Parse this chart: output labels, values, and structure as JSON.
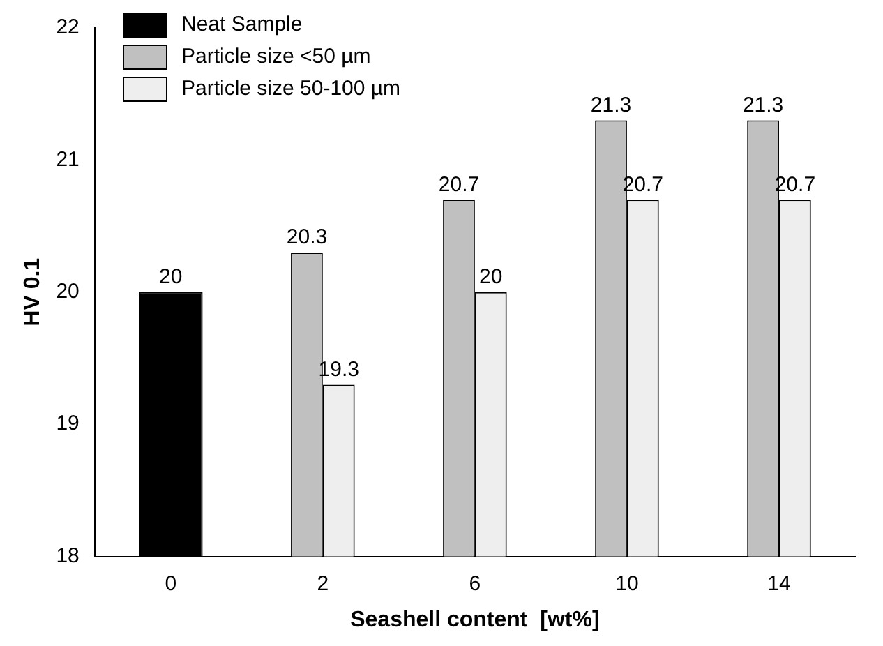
{
  "chart_data": {
    "type": "bar",
    "xlabel": "Seashell content  [wt%]",
    "ylabel": "HV 0.1",
    "categories": [
      "0",
      "2",
      "6",
      "10",
      "14"
    ],
    "series": [
      {
        "name": "Neat Sample",
        "color": "#000000",
        "values": [
          20,
          null,
          null,
          null,
          null
        ]
      },
      {
        "name": "Particle size <50 µm",
        "color": "#c0c0c0",
        "values": [
          null,
          20.3,
          20.7,
          21.3,
          21.3
        ]
      },
      {
        "name": "Particle size 50-100 µm",
        "color": "#eeeeee",
        "values": [
          null,
          19.3,
          20,
          20.7,
          20.7
        ]
      }
    ],
    "ylim": [
      18,
      22
    ],
    "yticks": [
      18,
      19,
      20,
      21,
      22
    ],
    "grid": false,
    "legend": "top left",
    "data_labels": true
  }
}
